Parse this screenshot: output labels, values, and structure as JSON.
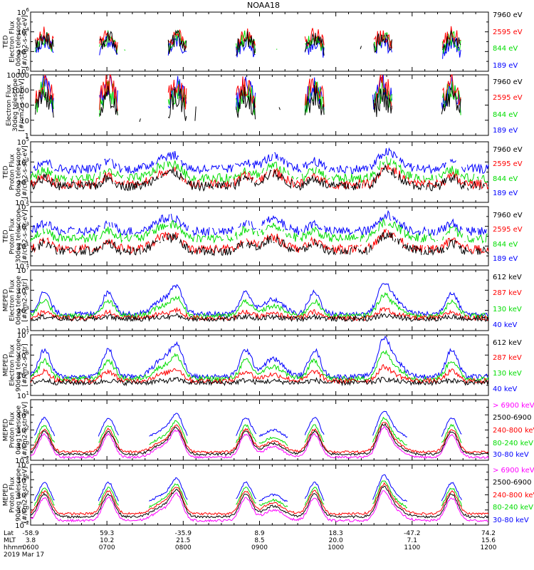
{
  "figure_title": "NOAA18",
  "footer": {
    "row_labels": [
      "Lat",
      "MLT",
      "hhmm",
      "2019 Mar 17"
    ],
    "ticks": [
      {
        "lat": "-58.9",
        "mlt": "3.8",
        "hhmm": "0600"
      },
      {
        "lat": "59.3",
        "mlt": "10.2",
        "hhmm": "0700"
      },
      {
        "lat": "-35.9",
        "mlt": "21.5",
        "hhmm": "0800"
      },
      {
        "lat": "8.9",
        "mlt": "8.5",
        "hhmm": "0900"
      },
      {
        "lat": "18.3",
        "mlt": "20.0",
        "hhmm": "1000"
      },
      {
        "lat": "-47.2",
        "mlt": "7.1",
        "hhmm": "1100"
      },
      {
        "lat": "74.2",
        "mlt": "15.6",
        "hhmm": "1200"
      }
    ]
  },
  "colors": {
    "black": "#000000",
    "red": "#ff0000",
    "green": "#00dd00",
    "blue": "#0000ff",
    "magenta": "#ff00ff"
  },
  "chart_data": [
    {
      "id": "ted-e-0",
      "type": "line",
      "ylog": true,
      "ylim": [
        1,
        1000000
      ],
      "ylabel": [
        "TED",
        "Electron Flux",
        "0deg telescope",
        "[#/cm2-s-str-eV]"
      ],
      "yticks": [
        {
          "v": 1,
          "exp": "0"
        },
        {
          "v": 100,
          "exp": "2"
        },
        {
          "v": 10000,
          "exp": "4"
        },
        {
          "v": 1000000,
          "exp": "6"
        }
      ],
      "minor": [
        10,
        1000,
        100000
      ],
      "series": [
        {
          "name": "7960 eV",
          "color": "#000000",
          "level": 2.0
        },
        {
          "name": "2595 eV",
          "color": "#ff0000",
          "level": 2.4
        },
        {
          "name": "844 eV",
          "color": "#00dd00",
          "level": 2.0
        },
        {
          "name": "189 eV",
          "color": "#0000ff",
          "level": 1.6
        }
      ],
      "style": "ted",
      "base": 1.0
    },
    {
      "id": "ted-e-30",
      "type": "line",
      "ylog": true,
      "ylim": [
        1,
        10000
      ],
      "ylabel": [
        "Electron Flux",
        "30deg telescope",
        "[#/cm2-s-str-eV]"
      ],
      "yticks": [
        {
          "v": 1,
          "text": "1"
        },
        {
          "v": 10,
          "text": "10"
        },
        {
          "v": 100,
          "text": "100"
        },
        {
          "v": 1000,
          "text": "1000"
        },
        {
          "v": 10000,
          "text": "10000"
        }
      ],
      "minor": [],
      "series": [
        {
          "name": "7960 eV",
          "color": "#000000",
          "level": 1.2
        },
        {
          "name": "2595 eV",
          "color": "#ff0000",
          "level": 2.0
        },
        {
          "name": "844 eV",
          "color": "#00dd00",
          "level": 1.6
        },
        {
          "name": "189 eV",
          "color": "#0000ff",
          "level": 1.8
        }
      ],
      "style": "ted",
      "base": 0.6
    },
    {
      "id": "ted-p-0",
      "type": "line",
      "ylog": true,
      "ylim": [
        0.1,
        100000
      ],
      "ylabel": [
        "TED",
        "Proton Flux",
        "0deg telescope",
        "[#/cm2-s-str-eV]"
      ],
      "yticks": [
        {
          "v": 0.1,
          "exp": "-1"
        },
        {
          "v": 10,
          "exp": "1"
        },
        {
          "v": 1000,
          "exp": "3"
        },
        {
          "v": 100000,
          "exp": "5"
        }
      ],
      "minor": [
        1,
        100,
        10000
      ],
      "series": [
        {
          "name": "7960 eV",
          "color": "#000000",
          "level": 0.6
        },
        {
          "name": "2595 eV",
          "color": "#ff0000",
          "level": 0.8
        },
        {
          "name": "844 eV",
          "color": "#00dd00",
          "level": 1.4
        },
        {
          "name": "189 eV",
          "color": "#0000ff",
          "level": 2.3
        }
      ],
      "style": "proton",
      "base": 0.7
    },
    {
      "id": "ted-p-30",
      "type": "line",
      "ylog": true,
      "ylim": [
        0.1,
        100000
      ],
      "ylabel": [
        "TED",
        "Proton Flux",
        "30deg telescope",
        "[#/cm2-s-str-eV]"
      ],
      "yticks": [
        {
          "v": 0.1,
          "exp": "-1"
        },
        {
          "v": 10,
          "exp": "1"
        },
        {
          "v": 1000,
          "exp": "3"
        },
        {
          "v": 100000,
          "exp": "5"
        }
      ],
      "minor": [
        1,
        100,
        10000
      ],
      "series": [
        {
          "name": "7960 eV",
          "color": "#000000",
          "level": 0.5
        },
        {
          "name": "2595 eV",
          "color": "#ff0000",
          "level": 0.7
        },
        {
          "name": "844 eV",
          "color": "#00dd00",
          "level": 1.8
        },
        {
          "name": "189 eV",
          "color": "#0000ff",
          "level": 2.5
        }
      ],
      "style": "proton",
      "base": 0.9
    },
    {
      "id": "meped-e-0",
      "type": "line",
      "ylog": true,
      "ylim": [
        10,
        10000000
      ],
      "ylabel": [
        "MEPED",
        "Electron Flux",
        "0deg telescope",
        "[#/cm2-s-str]"
      ],
      "yticks": [
        {
          "v": 10,
          "exp": "1"
        },
        {
          "v": 1000,
          "exp": "3"
        },
        {
          "v": 100000,
          "exp": "5"
        },
        {
          "v": 10000000,
          "exp": "7"
        }
      ],
      "minor": [
        100,
        10000,
        1000000
      ],
      "series": [
        {
          "name": "612 keV",
          "color": "#000000",
          "level": 2.3
        },
        {
          "name": "287 keV",
          "color": "#ff0000",
          "level": 2.6
        },
        {
          "name": "130 keV",
          "color": "#00dd00",
          "level": 3.3
        },
        {
          "name": "40 keV",
          "color": "#0000ff",
          "level": 3.9
        }
      ],
      "style": "meped",
      "base": 2.1
    },
    {
      "id": "meped-e-90",
      "type": "line",
      "ylog": true,
      "ylim": [
        10,
        10000000
      ],
      "ylabel": [
        "MEPED",
        "Electron Flux",
        "90deg telescope",
        "[#/cm2-s-str]"
      ],
      "yticks": [
        {
          "v": 10,
          "exp": "1"
        },
        {
          "v": 1000,
          "exp": "3"
        },
        {
          "v": 100000,
          "exp": "5"
        },
        {
          "v": 10000000,
          "exp": "7"
        }
      ],
      "minor": [
        100,
        10000,
        1000000
      ],
      "series": [
        {
          "name": "612 keV",
          "color": "#000000",
          "level": 2.4
        },
        {
          "name": "287 keV",
          "color": "#ff0000",
          "level": 3.0
        },
        {
          "name": "130 keV",
          "color": "#00dd00",
          "level": 3.7
        },
        {
          "name": "40 keV",
          "color": "#0000ff",
          "level": 4.4
        }
      ],
      "style": "meped",
      "base": 2.2
    },
    {
      "id": "meped-p-0",
      "type": "line",
      "ylog": true,
      "ylim": [
        0.01,
        1000000
      ],
      "ylabel": [
        "MEPED",
        "Proton Flux",
        "0deg telescope",
        "[#/cm2-s-str-keV]"
      ],
      "yticks": [
        {
          "v": 0.01,
          "exp": "-2"
        },
        {
          "v": 1,
          "exp": "0"
        },
        {
          "v": 100,
          "exp": "2"
        },
        {
          "v": 10000,
          "exp": "4"
        }
      ],
      "minor": [
        0.1,
        10,
        1000,
        100000
      ],
      "series": [
        {
          "name": "> 6900 keV",
          "color": "#ff00ff",
          "level": -1.6
        },
        {
          "name": "2500-6900",
          "color": "#000000",
          "level": -1.2
        },
        {
          "name": "240-800 keV",
          "color": "#ff0000",
          "level": -0.9
        },
        {
          "name": "80-240 keV",
          "color": "#00dd00",
          "level": -0.4
        },
        {
          "name": "30-80 keV",
          "color": "#0000ff",
          "level": 0.6
        }
      ],
      "style": "mepedp",
      "base": 0.4
    },
    {
      "id": "meped-p-90",
      "type": "line",
      "ylog": true,
      "ylim": [
        0.01,
        1000000
      ],
      "ylabel": [
        "MEPED",
        "Proton Flux",
        "90deg telescope",
        "[#/cm2-s-str-keV]"
      ],
      "yticks": [
        {
          "v": 0.01,
          "exp": "-2"
        },
        {
          "v": 1,
          "exp": "0"
        },
        {
          "v": 100,
          "exp": "2"
        },
        {
          "v": 10000,
          "exp": "4"
        },
        {
          "v": 1000000,
          "exp": "6"
        }
      ],
      "minor": [
        0.1,
        10,
        1000,
        100000
      ],
      "series": [
        {
          "name": "> 6900 keV",
          "color": "#ff00ff",
          "level": -1.4
        },
        {
          "name": "2500-6900",
          "color": "#000000",
          "level": -0.9
        },
        {
          "name": "240-800 keV",
          "color": "#ff0000",
          "level": -0.5
        },
        {
          "name": "80-240 keV",
          "color": "#00dd00",
          "level": -0.1
        },
        {
          "name": "30-80 keV",
          "color": "#0000ff",
          "level": 0.6
        }
      ],
      "style": "mepedp",
      "base": 0.5
    }
  ]
}
